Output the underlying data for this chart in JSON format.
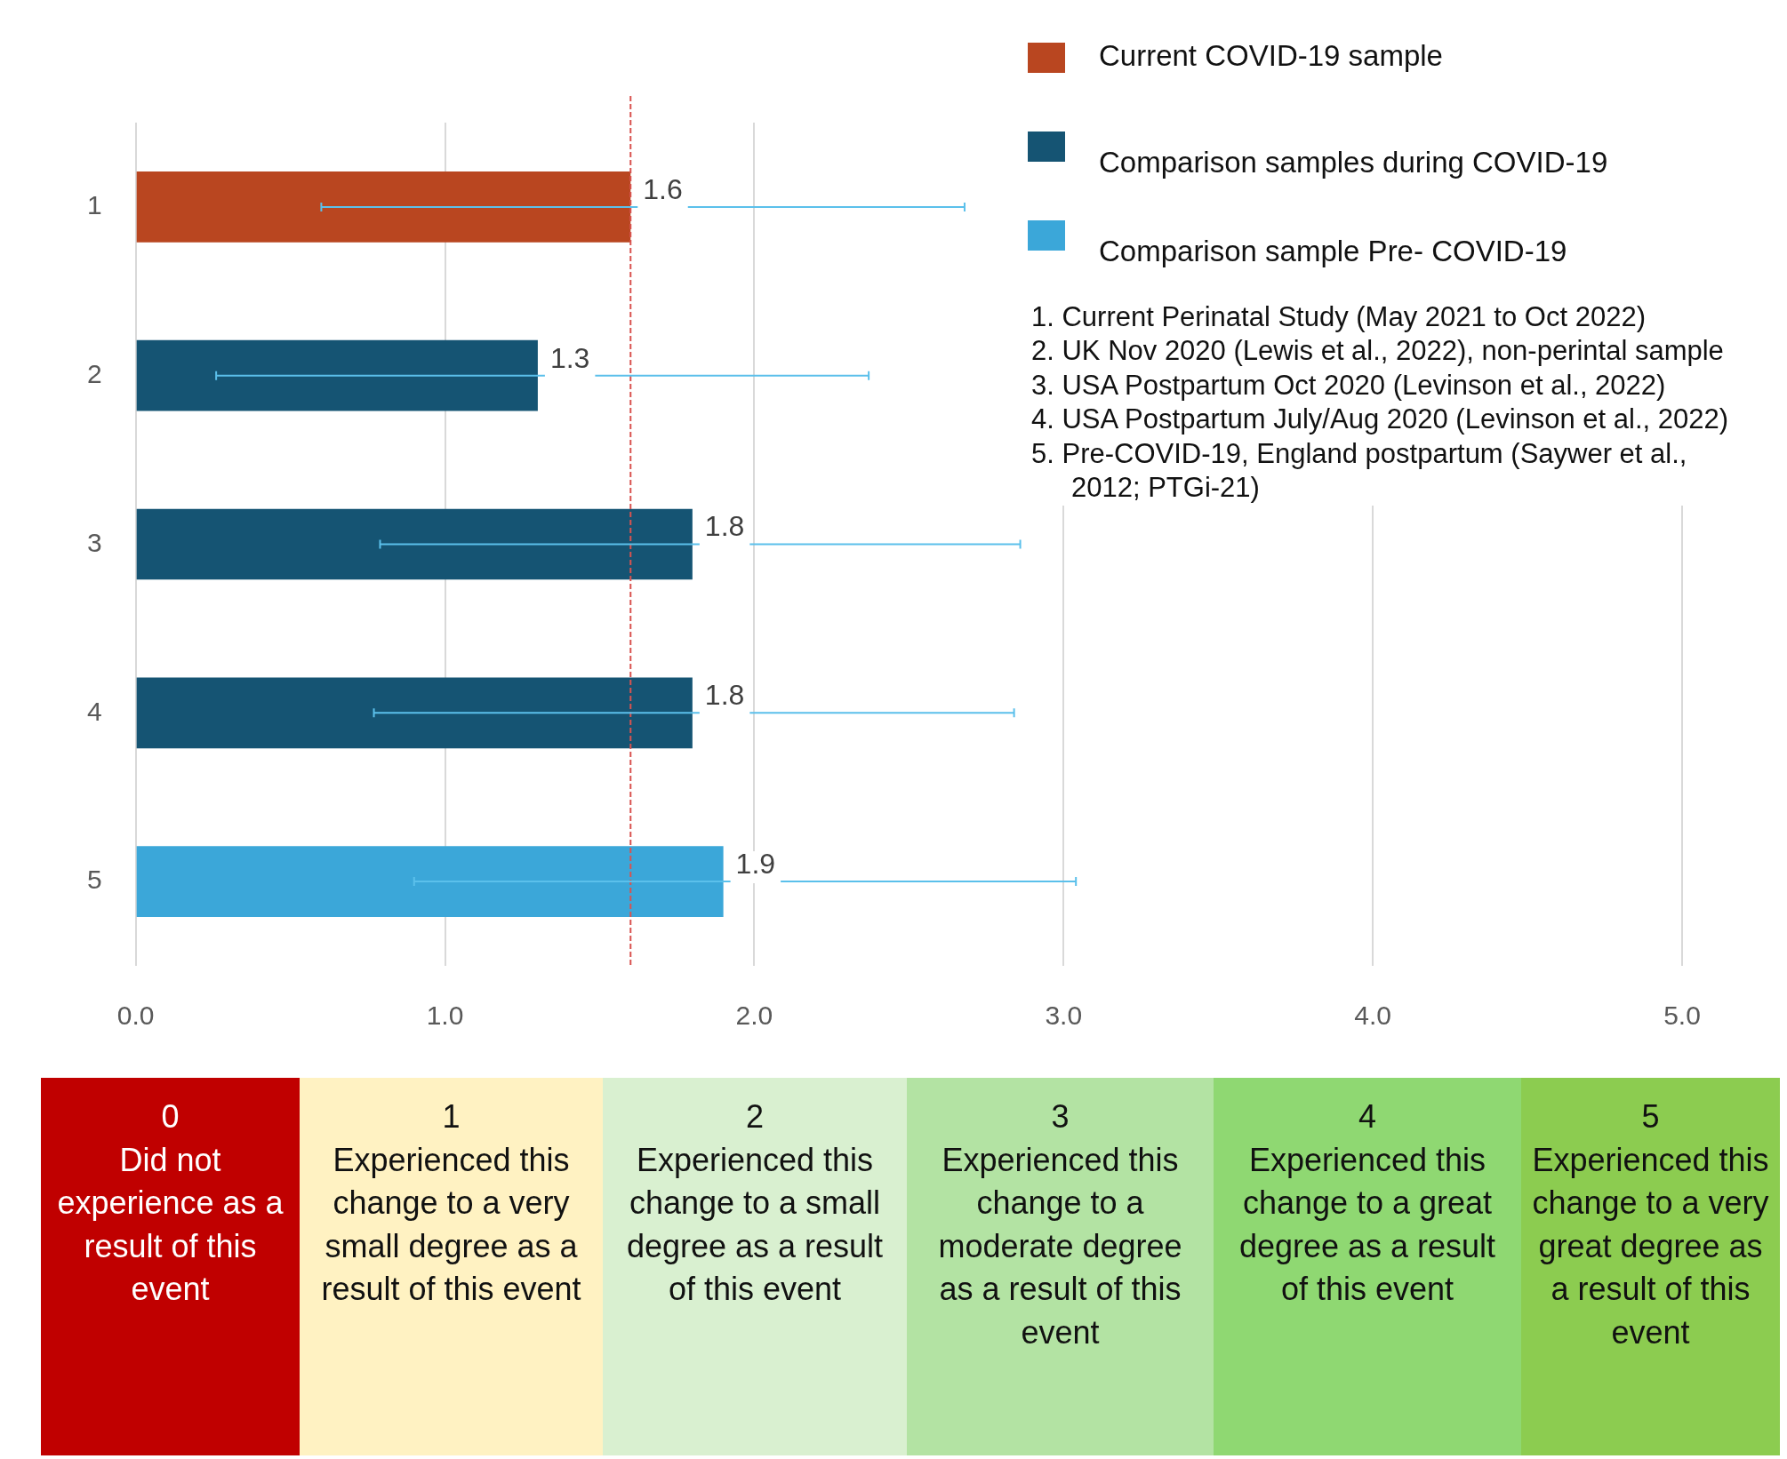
{
  "chart_data": {
    "type": "bar",
    "orientation": "horizontal",
    "stacked": true,
    "categories": [
      "1",
      "2",
      "3",
      "4",
      "5"
    ],
    "series": [
      {
        "name": "Current COVID-19 sample",
        "color": "#b94620",
        "values": [
          1.6,
          null,
          null,
          null,
          null
        ],
        "errors": [
          [
            0.6,
            2.68
          ],
          null,
          null,
          null,
          null
        ]
      },
      {
        "name": "Comparison samples during COVID-19",
        "color": "#155473",
        "values": [
          null,
          1.3,
          1.8,
          1.8,
          null
        ],
        "errors": [
          null,
          [
            0.26,
            2.37
          ],
          [
            0.79,
            2.86
          ],
          [
            0.77,
            2.84
          ],
          null
        ]
      },
      {
        "name": "Comparison sample Pre- COVID-19",
        "color": "#3ba7d9",
        "values": [
          null,
          null,
          null,
          null,
          1.9
        ],
        "errors": [
          null,
          null,
          null,
          null,
          [
            0.9,
            3.04
          ]
        ]
      }
    ],
    "xlim": [
      0,
      5
    ],
    "xticks": [
      {
        "value": 0,
        "label": "0.0"
      },
      {
        "value": 1,
        "label": "1.0"
      },
      {
        "value": 2,
        "label": "2.0"
      },
      {
        "value": 3,
        "label": "3.0"
      },
      {
        "value": 4,
        "label": "4.0"
      },
      {
        "value": 5,
        "label": "5.0"
      }
    ],
    "grid": "x",
    "legend": "top right",
    "data_labels": true,
    "ref_lines": [
      {
        "axis": "x",
        "value": 1.6,
        "color": "#d9534f",
        "line_style": "dashed"
      }
    ],
    "annotations": [
      "1. Current Perinatal Study (May 2021 to Oct 2022)",
      "2. UK Nov 2020 (Lewis et al., 2022), non-perintal sample",
      "3. USA Postpartum Oct 2020 (Levinson et al., 2022)",
      "4. USA Postpartum July/Aug 2020 (Levinson et al., 2022)",
      "5. Pre-COVID-19, England postpartum (Saywer et al., 2012; PTGi-21)",
      "0\nDid not experience as a result of this event",
      "1\nExperienced this change to a very small degree as a result of this event",
      "2\nExperienced this change to a small degree as a result of this event",
      "3\nExperienced this change to a moderate degree as a result of this event",
      "4\nExperienced this change to a great degree as a result of this event",
      "5\nExperienced this change to a very great degree as a result of this event"
    ]
  }
}
